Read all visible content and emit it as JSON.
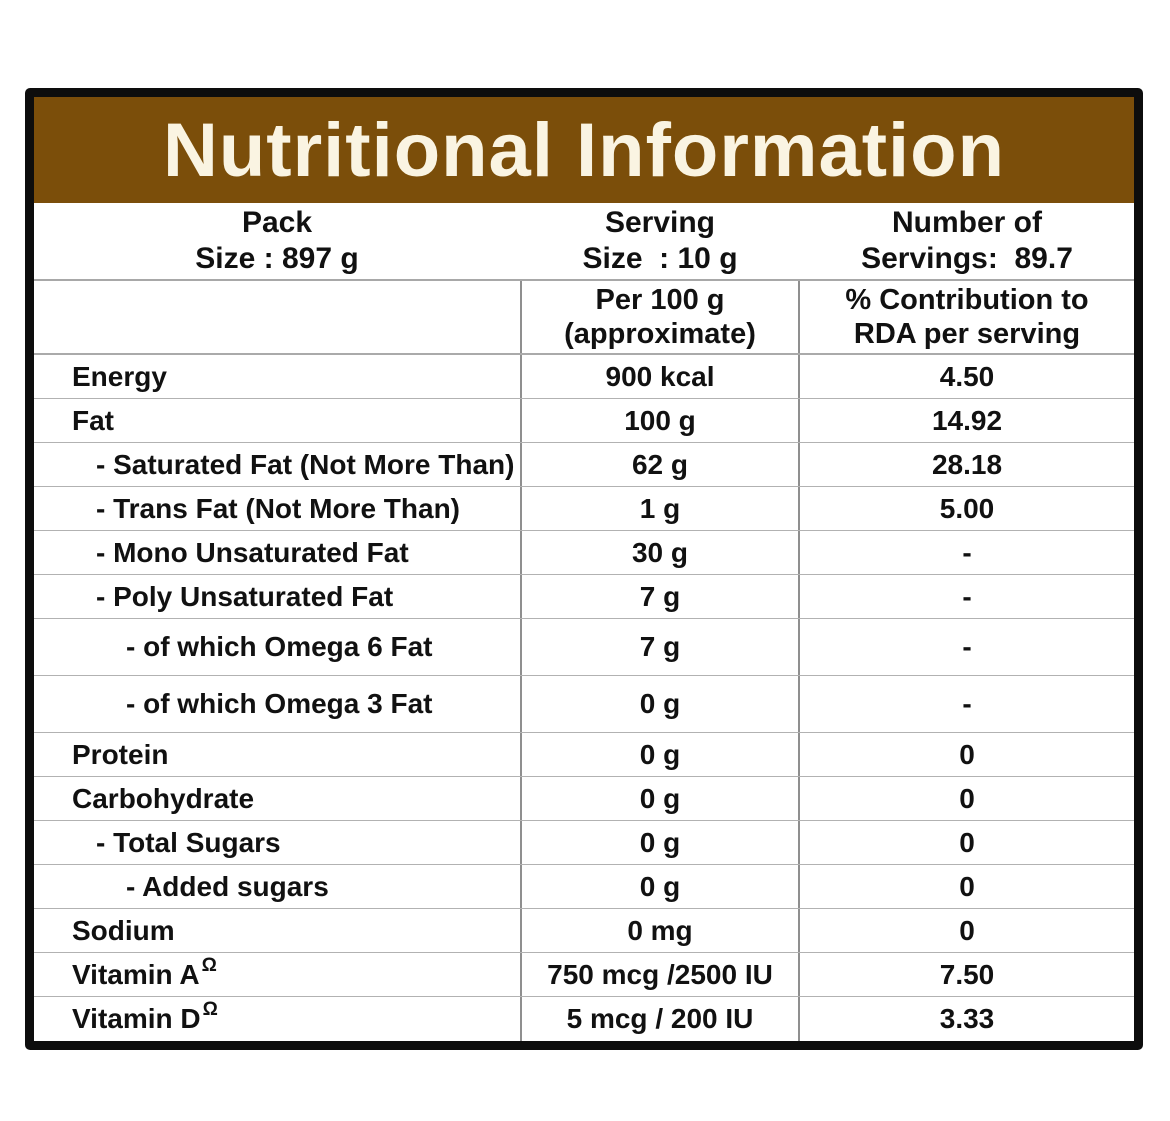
{
  "title": "Nutritional Information",
  "colors": {
    "band_background": "#7b4e0a",
    "band_text": "#faf4e2",
    "grid_line": "#b2b2b2",
    "divider_line": "#8f8f8f",
    "outer_border": "#0d0d0d",
    "text": "#111111"
  },
  "pack_header": {
    "pack_line1": "Pack",
    "pack_line2": "Size : 897 g",
    "serving_line1": "Serving",
    "serving_line2": "Size  : 10 g",
    "servings_line1": "Number of",
    "servings_line2": "Servings:  89.7"
  },
  "column_header": {
    "per100_line1": "Per 100 g",
    "per100_line2": "(approximate)",
    "rda_line1": "% Contribution to",
    "rda_line2": "RDA per serving"
  },
  "rows": [
    {
      "label": "Energy",
      "sup": "",
      "indent": 0,
      "per100": "900 kcal",
      "rda": "4.50"
    },
    {
      "label": "Fat",
      "sup": "",
      "indent": 0,
      "per100": "100 g",
      "rda": "14.92"
    },
    {
      "label": "- Saturated Fat (Not More Than)",
      "sup": "",
      "indent": 1,
      "per100": "62 g",
      "rda": "28.18"
    },
    {
      "label": "- Trans Fat (Not More Than)",
      "sup": "",
      "indent": 1,
      "per100": "1 g",
      "rda": "5.00"
    },
    {
      "label": "- Mono Unsaturated Fat",
      "sup": "",
      "indent": 1,
      "per100": "30 g",
      "rda": "-"
    },
    {
      "label": "- Poly Unsaturated Fat",
      "sup": "",
      "indent": 1,
      "per100": "7 g",
      "rda": "-"
    },
    {
      "label": "- of which Omega 6 Fat",
      "sup": "",
      "indent": 2,
      "per100": "7 g",
      "rda": "-"
    },
    {
      "label": "- of which Omega 3 Fat",
      "sup": "",
      "indent": 2,
      "per100": "0 g",
      "rda": "-"
    },
    {
      "label": "Protein",
      "sup": "",
      "indent": 0,
      "per100": "0 g",
      "rda": "0"
    },
    {
      "label": "Carbohydrate",
      "sup": "",
      "indent": 0,
      "per100": "0 g",
      "rda": "0"
    },
    {
      "label": "- Total Sugars",
      "sup": "",
      "indent": 1,
      "per100": "0 g",
      "rda": "0"
    },
    {
      "label": "- Added sugars",
      "sup": "",
      "indent": 2,
      "per100": "0 g",
      "rda": "0"
    },
    {
      "label": "Sodium",
      "sup": "",
      "indent": 0,
      "per100": "0 mg",
      "rda": "0"
    },
    {
      "label": "Vitamin A",
      "sup": "Ω",
      "indent": 0,
      "per100": "750 mcg /2500 IU",
      "rda": "7.50"
    },
    {
      "label": "Vitamin D",
      "sup": "Ω",
      "indent": 0,
      "per100": "5 mcg / 200 IU",
      "rda": "3.33"
    }
  ]
}
